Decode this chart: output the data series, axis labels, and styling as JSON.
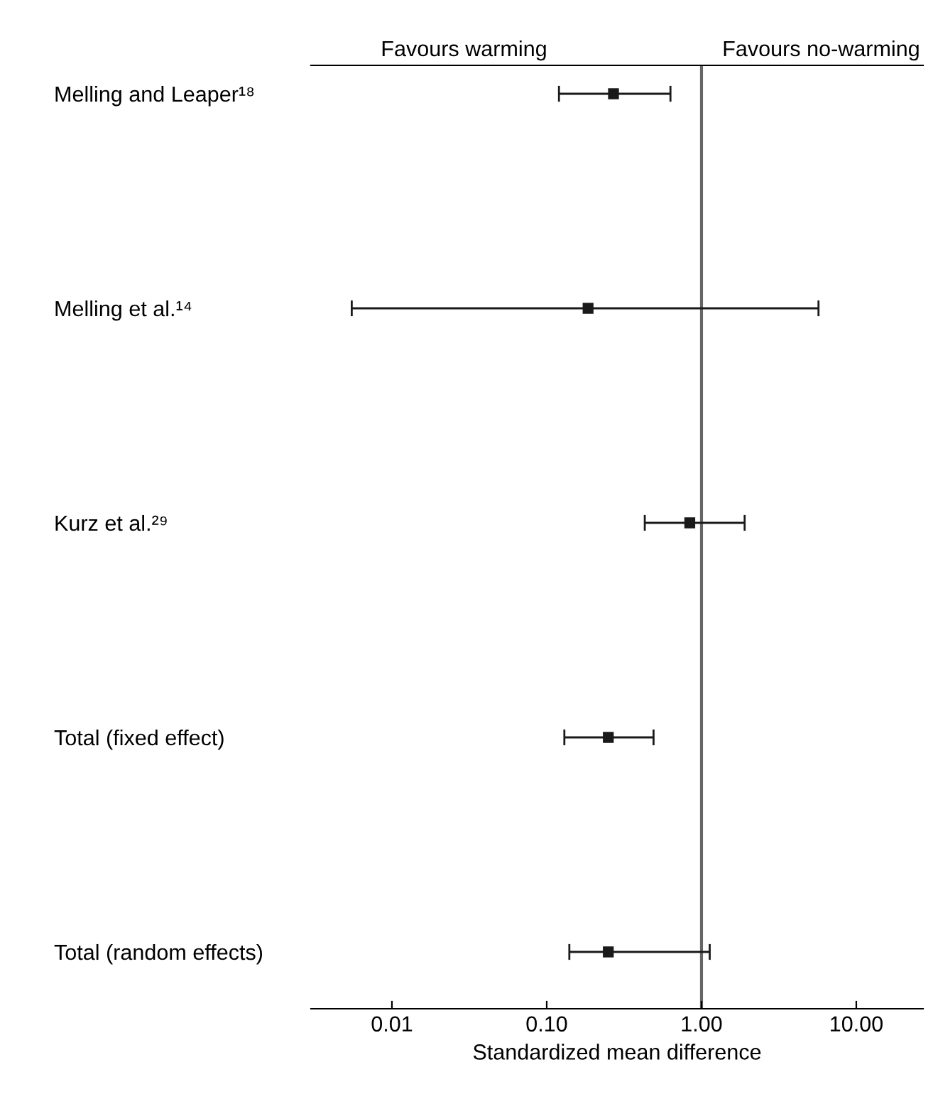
{
  "chart_data": {
    "type": "scatter",
    "orientation": "horizontal",
    "categories": [
      "Melling and Leaper¹⁸",
      "Melling et al.¹⁴",
      "Kurz et al.²⁹",
      "Total (fixed effect)",
      "Total (random effects)"
    ],
    "series": [
      {
        "color": "#1a1a1a",
        "values": [
          0.27,
          0.185,
          0.84,
          0.25,
          0.25
        ],
        "errors": [
          [
            0.12,
            0.63
          ],
          [
            0.0055,
            5.7
          ],
          [
            0.43,
            1.9
          ],
          [
            0.13,
            0.49
          ],
          [
            0.14,
            1.13
          ]
        ]
      }
    ],
    "marker": "square",
    "log": "x",
    "xlim": [
      0.003,
      27
    ],
    "xticks": [
      {
        "value": 0.01,
        "label": "0.01"
      },
      {
        "value": 0.1,
        "label": "0.10"
      },
      {
        "value": 1,
        "label": "1.00"
      },
      {
        "value": 10,
        "label": "10.00"
      }
    ],
    "xlabel": "Standardized mean difference",
    "ref_lines": [
      {
        "axis": "x",
        "value": 1,
        "color": "#666666"
      }
    ],
    "annotations": [
      "Favours warming",
      "Favours no-warming"
    ],
    "grid": false
  }
}
